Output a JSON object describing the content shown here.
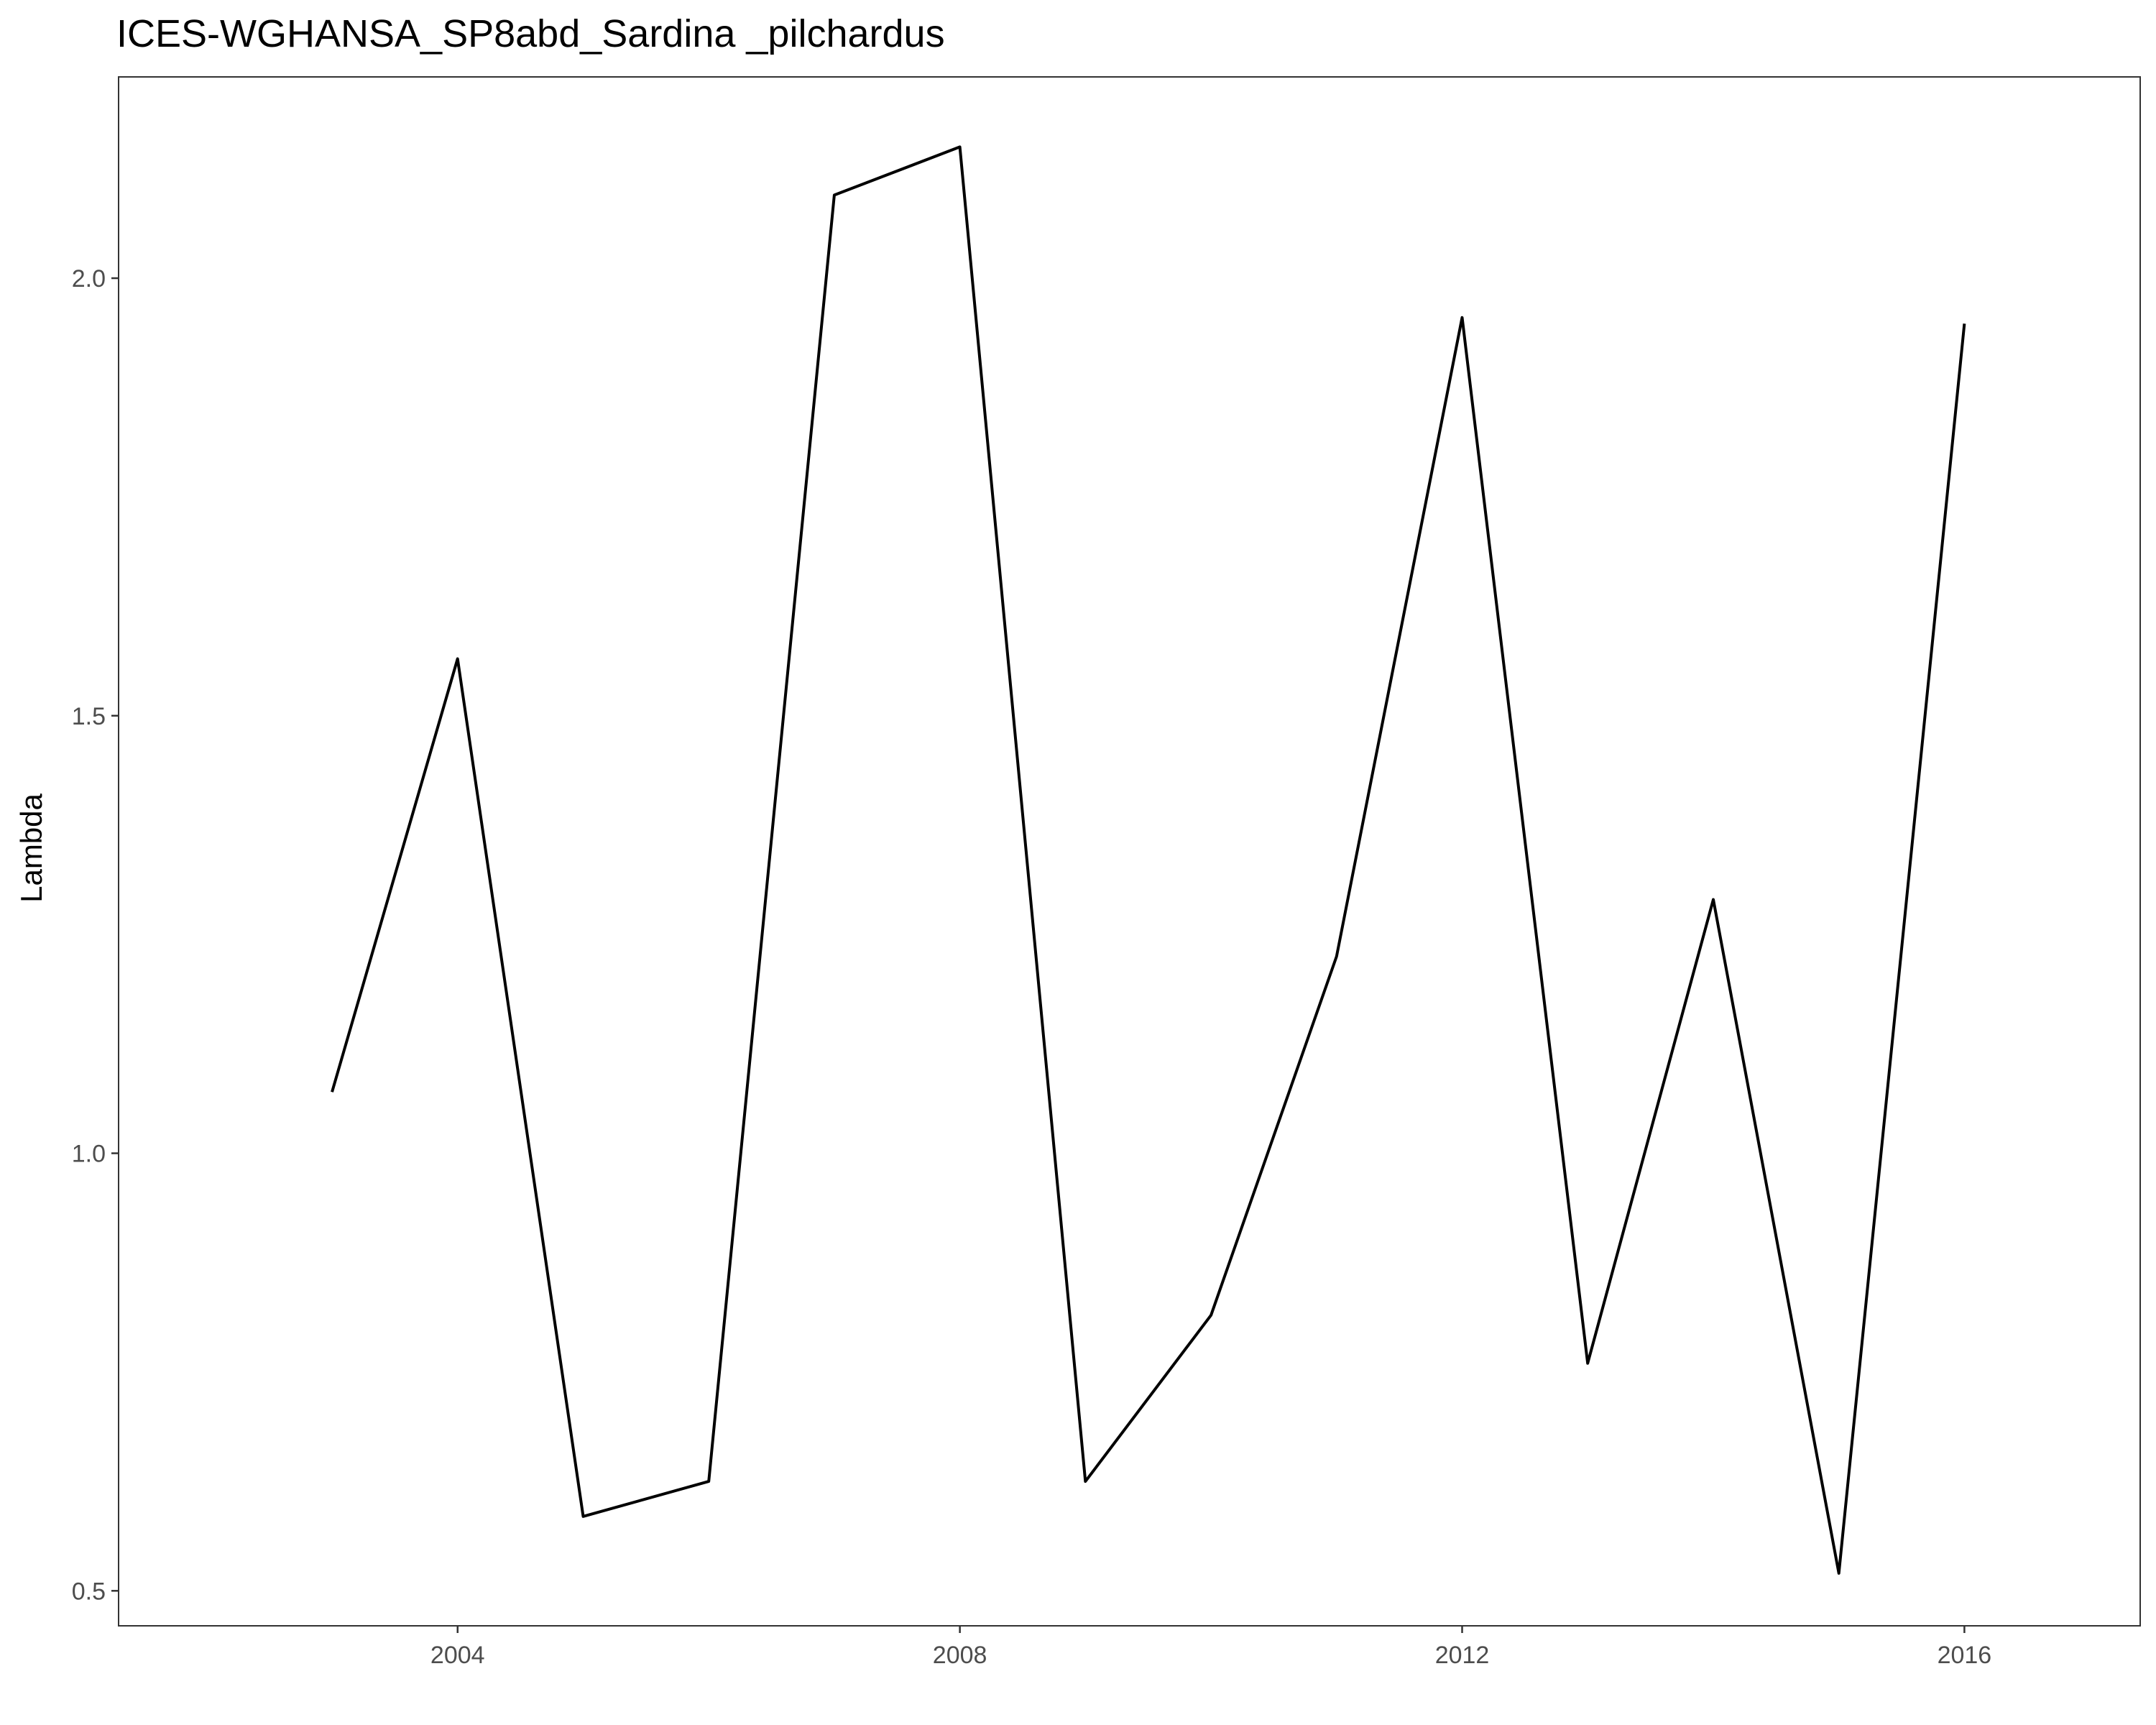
{
  "chart_data": {
    "type": "line",
    "title": "ICES-WGHANSA_SP8abd_Sardina _pilchardus",
    "xlabel": "",
    "ylabel": "Lambda",
    "x": [
      2003,
      2004,
      2005,
      2006,
      2007,
      2008,
      2009,
      2010,
      2011,
      2012,
      2013,
      2014,
      2015,
      2016
    ],
    "series": [
      {
        "values": [
          1.07,
          1.565,
          0.585,
          0.625,
          2.095,
          2.15,
          0.625,
          0.815,
          1.225,
          1.955,
          0.76,
          1.29,
          0.52,
          1.948
        ]
      }
    ],
    "x_ticks": [
      2004,
      2008,
      2012,
      2016
    ],
    "x_tick_labels": [
      "2004",
      "2008",
      "2012",
      "2016"
    ],
    "y_ticks": [
      0.5,
      1.0,
      1.5,
      2.0
    ],
    "y_tick_labels": [
      "0.5",
      "1.0",
      "1.5",
      "2.0"
    ],
    "xlim": [
      2001.3,
      2017.4
    ],
    "ylim": [
      0.46,
      2.23
    ],
    "grid": false,
    "legend": "none",
    "line_color": "#000000",
    "panel_border_color": "#333333",
    "tick_label_color": "#4d4d4d"
  }
}
